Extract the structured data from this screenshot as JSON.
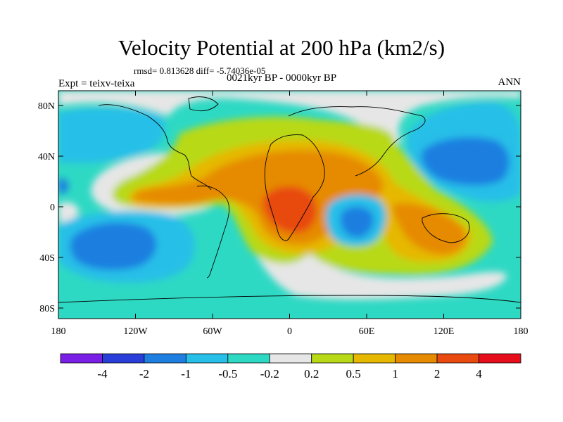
{
  "figure": {
    "title": "Velocity Potential at 200 hPa (km2/s)",
    "stats": "rmsd= 0.813628 diff= -5.74036e-05",
    "left_label": "Expt = teixv-teixa",
    "center_label": "0021kyr BP - 0000kyr BP",
    "right_label": "ANN"
  },
  "axes": {
    "y_ticks": [
      "80N",
      "40N",
      "0",
      "40S",
      "80S"
    ],
    "x_ticks": [
      "180",
      "120W",
      "60W",
      "0",
      "60E",
      "120E",
      "180"
    ]
  },
  "colorbar": {
    "labels": [
      "-4",
      "-2",
      "-1",
      "-0.5",
      "-0.2",
      "0.2",
      "0.5",
      "1",
      "2",
      "4"
    ],
    "colors": [
      "#7a1fe6",
      "#2a3fd9",
      "#1f7fe0",
      "#27bfe8",
      "#2ed9c4",
      "#e6e6e6",
      "#b8d916",
      "#e6b800",
      "#e68a00",
      "#e84a10",
      "#e60e1a"
    ]
  },
  "colors": {
    "strong_negative": "#1f7fe0",
    "weak_negative": "#2ed9c4",
    "neutral": "#e6e6e6",
    "weak_positive": "#b8d916",
    "positive": "#e6b800",
    "strong_positive": "#e68a00",
    "max_positive": "#e84a10"
  }
}
